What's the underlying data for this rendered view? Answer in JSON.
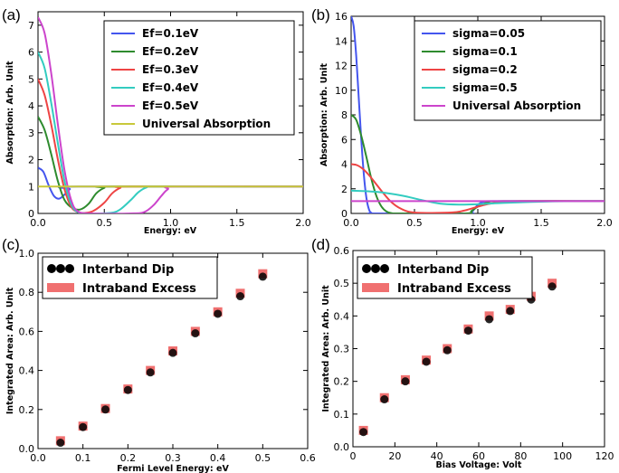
{
  "chart_data": [
    {
      "label": "(a)",
      "type": "line",
      "xlabel": "Energy: eV",
      "ylabel": "Absorption: Arb. Unit",
      "xlim": [
        0,
        2.0
      ],
      "ylim": [
        0,
        7.5
      ],
      "xticks": [
        "0.0",
        "0.5",
        "1.0",
        "1.5",
        "2.0"
      ],
      "yticks": [
        "0",
        "1",
        "2",
        "3",
        "4",
        "5",
        "6",
        "7"
      ],
      "legend_position": "top-right",
      "series": [
        {
          "name": "Ef=0.1eV",
          "color": "#4455ee",
          "points": [
            [
              0,
              1.7
            ],
            [
              0.04,
              1.55
            ],
            [
              0.08,
              1.05
            ],
            [
              0.12,
              0.65
            ],
            [
              0.16,
              0.55
            ],
            [
              0.2,
              0.7
            ],
            [
              0.24,
              0.9
            ],
            [
              0.3,
              1.0
            ],
            [
              2.0,
              1.0
            ]
          ]
        },
        {
          "name": "Ef=0.2eV",
          "color": "#2e8b2e",
          "points": [
            [
              0,
              3.6
            ],
            [
              0.05,
              3.1
            ],
            [
              0.1,
              2.2
            ],
            [
              0.15,
              1.2
            ],
            [
              0.2,
              0.5
            ],
            [
              0.26,
              0.2
            ],
            [
              0.32,
              0.15
            ],
            [
              0.38,
              0.35
            ],
            [
              0.44,
              0.75
            ],
            [
              0.5,
              0.95
            ],
            [
              0.56,
              1.0
            ],
            [
              2.0,
              1.0
            ]
          ]
        },
        {
          "name": "Ef=0.3eV",
          "color": "#ee4444",
          "points": [
            [
              0,
              5.0
            ],
            [
              0.05,
              4.4
            ],
            [
              0.1,
              3.3
            ],
            [
              0.15,
              2.0
            ],
            [
              0.2,
              0.9
            ],
            [
              0.25,
              0.25
            ],
            [
              0.3,
              0.05
            ],
            [
              0.36,
              0.02
            ],
            [
              0.42,
              0.1
            ],
            [
              0.5,
              0.4
            ],
            [
              0.56,
              0.75
            ],
            [
              0.62,
              0.95
            ],
            [
              0.7,
              1.0
            ],
            [
              2.0,
              1.0
            ]
          ]
        },
        {
          "name": "Ef=0.4eV",
          "color": "#33ccc0",
          "points": [
            [
              0,
              6.0
            ],
            [
              0.05,
              5.4
            ],
            [
              0.1,
              4.1
            ],
            [
              0.15,
              2.6
            ],
            [
              0.2,
              1.2
            ],
            [
              0.25,
              0.35
            ],
            [
              0.3,
              0.05
            ],
            [
              0.4,
              0.0
            ],
            [
              0.55,
              0.02
            ],
            [
              0.62,
              0.15
            ],
            [
              0.7,
              0.5
            ],
            [
              0.76,
              0.8
            ],
            [
              0.82,
              0.97
            ],
            [
              0.9,
              1.0
            ],
            [
              2.0,
              1.0
            ]
          ]
        },
        {
          "name": "Ef=0.5eV",
          "color": "#cc44cc",
          "points": [
            [
              0,
              7.3
            ],
            [
              0.05,
              6.7
            ],
            [
              0.1,
              5.2
            ],
            [
              0.15,
              3.3
            ],
            [
              0.2,
              1.6
            ],
            [
              0.25,
              0.5
            ],
            [
              0.3,
              0.08
            ],
            [
              0.4,
              0.0
            ],
            [
              0.7,
              0.0
            ],
            [
              0.8,
              0.05
            ],
            [
              0.87,
              0.3
            ],
            [
              0.93,
              0.65
            ],
            [
              0.98,
              0.9
            ],
            [
              1.05,
              1.0
            ],
            [
              2.0,
              1.0
            ]
          ]
        },
        {
          "name": "Universal Absorption",
          "color": "#c8c83a",
          "points": [
            [
              0,
              1.0
            ],
            [
              2.0,
              1.0
            ]
          ]
        }
      ]
    },
    {
      "label": "(b)",
      "type": "line",
      "xlabel": "Energy: eV",
      "ylabel": "Absorption: Arb. Unit",
      "xlim": [
        0,
        2.0
      ],
      "ylim": [
        0,
        16
      ],
      "xticks": [
        "0.0",
        "0.5",
        "1.0",
        "1.5",
        "2.0"
      ],
      "yticks": [
        "0",
        "2",
        "4",
        "6",
        "8",
        "10",
        "12",
        "14",
        "16"
      ],
      "legend_position": "top-right",
      "series": [
        {
          "name": "sigma=0.05",
          "color": "#4455ee",
          "points": [
            [
              0,
              16.0
            ],
            [
              0.02,
              15.2
            ],
            [
              0.04,
              12.8
            ],
            [
              0.06,
              9.4
            ],
            [
              0.08,
              6.0
            ],
            [
              0.1,
              3.2
            ],
            [
              0.12,
              1.3
            ],
            [
              0.14,
              0.35
            ],
            [
              0.16,
              0.05
            ],
            [
              0.2,
              0.0
            ],
            [
              0.9,
              0.0
            ],
            [
              0.95,
              0.1
            ],
            [
              1.0,
              0.7
            ],
            [
              1.05,
              0.95
            ],
            [
              1.15,
              1.0
            ],
            [
              2.0,
              1.0
            ]
          ]
        },
        {
          "name": "sigma=0.1",
          "color": "#2e8b2e",
          "points": [
            [
              0,
              8.0
            ],
            [
              0.04,
              7.6
            ],
            [
              0.08,
              6.3
            ],
            [
              0.12,
              4.6
            ],
            [
              0.16,
              2.8
            ],
            [
              0.2,
              1.4
            ],
            [
              0.24,
              0.55
            ],
            [
              0.28,
              0.15
            ],
            [
              0.32,
              0.02
            ],
            [
              0.4,
              0.0
            ],
            [
              0.9,
              0.0
            ],
            [
              0.95,
              0.2
            ],
            [
              1.0,
              0.55
            ],
            [
              1.08,
              0.9
            ],
            [
              1.2,
              1.0
            ],
            [
              2.0,
              1.0
            ]
          ]
        },
        {
          "name": "sigma=0.2",
          "color": "#ee4444",
          "points": [
            [
              0,
              4.0
            ],
            [
              0.05,
              3.9
            ],
            [
              0.1,
              3.55
            ],
            [
              0.15,
              3.0
            ],
            [
              0.2,
              2.35
            ],
            [
              0.25,
              1.7
            ],
            [
              0.3,
              1.1
            ],
            [
              0.35,
              0.65
            ],
            [
              0.4,
              0.35
            ],
            [
              0.45,
              0.15
            ],
            [
              0.55,
              0.05
            ],
            [
              0.8,
              0.08
            ],
            [
              0.9,
              0.25
            ],
            [
              1.0,
              0.55
            ],
            [
              1.1,
              0.8
            ],
            [
              1.25,
              0.97
            ],
            [
              1.4,
              1.0
            ],
            [
              2.0,
              1.0
            ]
          ]
        },
        {
          "name": "sigma=0.5",
          "color": "#33ccc0",
          "points": [
            [
              0,
              1.85
            ],
            [
              0.2,
              1.75
            ],
            [
              0.4,
              1.45
            ],
            [
              0.55,
              1.1
            ],
            [
              0.7,
              0.8
            ],
            [
              0.85,
              0.72
            ],
            [
              1.0,
              0.75
            ],
            [
              1.2,
              0.85
            ],
            [
              1.4,
              0.93
            ],
            [
              1.6,
              0.98
            ],
            [
              1.8,
              1.0
            ],
            [
              2.0,
              1.0
            ]
          ]
        },
        {
          "name": "Universal Absorption",
          "color": "#cc44cc",
          "points": [
            [
              0,
              1.0
            ],
            [
              2.0,
              1.0
            ]
          ]
        }
      ]
    },
    {
      "label": "(c)",
      "type": "scatter",
      "xlabel": "Fermi Level Energy: eV",
      "ylabel": "Integrated Area: Arb. Unit",
      "xlim": [
        0,
        0.6
      ],
      "ylim": [
        0,
        1.0
      ],
      "xticks": [
        "0.0",
        "0.1",
        "0.2",
        "0.3",
        "0.4",
        "0.5",
        "0.6"
      ],
      "yticks": [
        "0.0",
        "0.2",
        "0.4",
        "0.6",
        "0.8",
        "1.0"
      ],
      "legend_position": "top-left",
      "series": [
        {
          "name": "Interband Dip",
          "color": "#000000",
          "marker": "circle",
          "x": [
            0.05,
            0.1,
            0.15,
            0.2,
            0.25,
            0.3,
            0.35,
            0.4,
            0.45,
            0.5
          ],
          "y": [
            0.03,
            0.11,
            0.2,
            0.3,
            0.39,
            0.49,
            0.59,
            0.69,
            0.78,
            0.88
          ]
        },
        {
          "name": "Intraband Excess",
          "color": "#f07070",
          "marker": "square",
          "x": [
            0.05,
            0.1,
            0.15,
            0.2,
            0.25,
            0.3,
            0.35,
            0.4,
            0.45,
            0.5
          ],
          "y": [
            0.04,
            0.115,
            0.205,
            0.305,
            0.4,
            0.5,
            0.6,
            0.7,
            0.795,
            0.895
          ]
        }
      ]
    },
    {
      "label": "(d)",
      "type": "scatter",
      "xlabel": "Bias Voltage: Volt",
      "ylabel": "Integrated Area: Arb. Unit",
      "xlim": [
        0,
        120
      ],
      "ylim": [
        0,
        0.6
      ],
      "xticks": [
        "0",
        "20",
        "40",
        "60",
        "80",
        "100",
        "120"
      ],
      "yticks": [
        "0.0",
        "0.1",
        "0.2",
        "0.3",
        "0.4",
        "0.5",
        "0.6"
      ],
      "legend_position": "top-left",
      "series": [
        {
          "name": "Interband Dip",
          "color": "#000000",
          "marker": "circle",
          "x": [
            5,
            15,
            25,
            35,
            45,
            55,
            65,
            75,
            85,
            95
          ],
          "y": [
            0.045,
            0.145,
            0.2,
            0.26,
            0.295,
            0.355,
            0.39,
            0.415,
            0.45,
            0.49
          ]
        },
        {
          "name": "Intraband Excess",
          "color": "#f07070",
          "marker": "square",
          "x": [
            5,
            15,
            25,
            35,
            45,
            55,
            65,
            75,
            85,
            95
          ],
          "y": [
            0.05,
            0.15,
            0.205,
            0.265,
            0.3,
            0.36,
            0.4,
            0.42,
            0.46,
            0.5
          ]
        }
      ]
    }
  ]
}
